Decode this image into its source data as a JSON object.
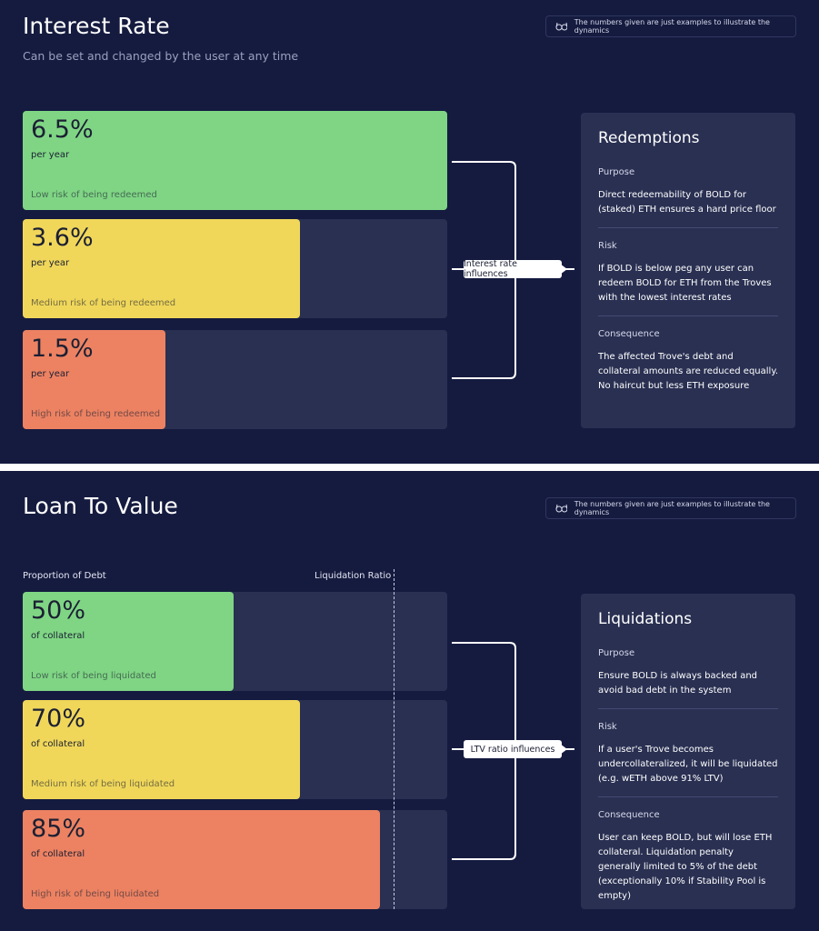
{
  "sections": [
    {
      "title": "Interest Rate",
      "subtitle": "Can be set and changed by the user at any time",
      "note": "The numbers given are just examples to illustrate the dynamics",
      "cards": [
        {
          "value": "6.5%",
          "unit": "per year",
          "risk": "Low risk of being redeemed"
        },
        {
          "value": "3.6%",
          "unit": "per year",
          "risk": "Medium risk of being redeemed"
        },
        {
          "value": "1.5%",
          "unit": "per year",
          "risk": "High risk of being redeemed"
        }
      ],
      "connector": "Interest rate influences",
      "info": {
        "title": "Redemptions",
        "items": [
          {
            "heading": "Purpose",
            "text": "Direct redeemability of BOLD for (staked) ETH ensures a hard price floor"
          },
          {
            "heading": "Risk",
            "text": "If BOLD is below peg any user can redeem BOLD for ETH from the Troves with the lowest interest rates"
          },
          {
            "heading": "Consequence",
            "text": "The affected Trove's debt and collateral amounts are reduced equally. No haircut but less ETH exposure"
          }
        ]
      }
    },
    {
      "title": "Loan To Value",
      "note": "The numbers given are just examples to illustrate the dynamics",
      "axis_left": "Proportion of Debt",
      "axis_right": "Liquidation Ratio",
      "cards": [
        {
          "value": "50%",
          "unit": "of collateral",
          "risk": "Low risk of being liquidated"
        },
        {
          "value": "70%",
          "unit": "of collateral",
          "risk": "Medium risk of being liquidated"
        },
        {
          "value": "85%",
          "unit": "of collateral",
          "risk": "High risk of being liquidated"
        }
      ],
      "connector": "LTV ratio influences",
      "info": {
        "title": "Liquidations",
        "items": [
          {
            "heading": "Purpose",
            "text": "Ensure BOLD is always backed and avoid bad debt in the system"
          },
          {
            "heading": "Risk",
            "text": "If a user's Trove becomes undercollateralized, it will be liquidated (e.g. wETH above 91% LTV)"
          },
          {
            "heading": "Consequence",
            "text": "User can keep BOLD, but will lose ETH collateral. Liquidation penalty generally limited to 5% of the debt (exceptionally 10% if Stability Pool is empty)"
          }
        ]
      }
    }
  ]
}
